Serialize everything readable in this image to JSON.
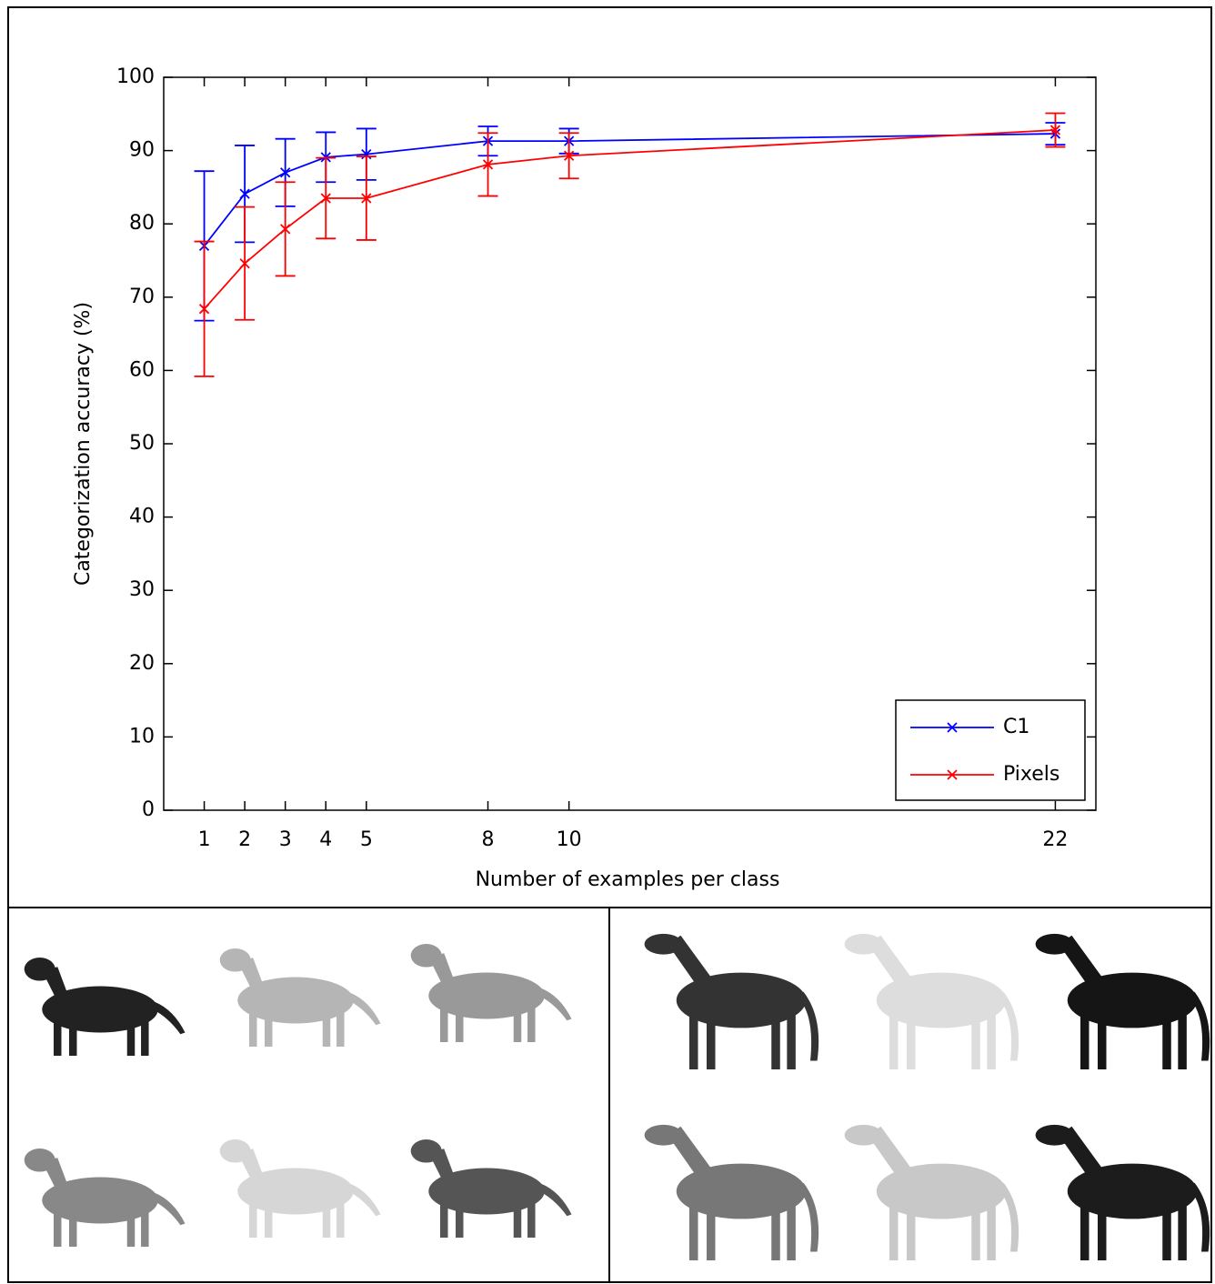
{
  "chart_data": {
    "type": "line",
    "x_label": "Number of examples per class",
    "y_label": "Categorization accuracy (%)",
    "x": [
      1,
      2,
      3,
      4,
      5,
      8,
      10,
      22
    ],
    "xlim": [
      0,
      23
    ],
    "xticks": [
      1,
      2,
      3,
      4,
      5,
      8,
      10,
      22
    ],
    "ylim": [
      0,
      100
    ],
    "yticks": [
      0,
      10,
      20,
      30,
      40,
      50,
      60,
      70,
      80,
      90,
      100
    ],
    "legend": "lower right",
    "series": [
      {
        "name": "C1",
        "color": "#0000ff",
        "values": [
          77.0,
          84.1,
          87.0,
          89.1,
          89.5,
          91.3,
          91.3,
          92.3
        ],
        "errors": [
          10.2,
          6.6,
          4.6,
          3.4,
          3.5,
          2.0,
          1.7,
          1.5
        ]
      },
      {
        "name": "Pixels",
        "color": "#ff0000",
        "values": [
          68.4,
          74.6,
          79.3,
          83.5,
          83.5,
          88.1,
          89.3,
          92.8
        ],
        "errors": [
          9.2,
          7.7,
          6.4,
          5.5,
          5.7,
          4.3,
          3.1,
          2.3
        ]
      }
    ]
  }
}
